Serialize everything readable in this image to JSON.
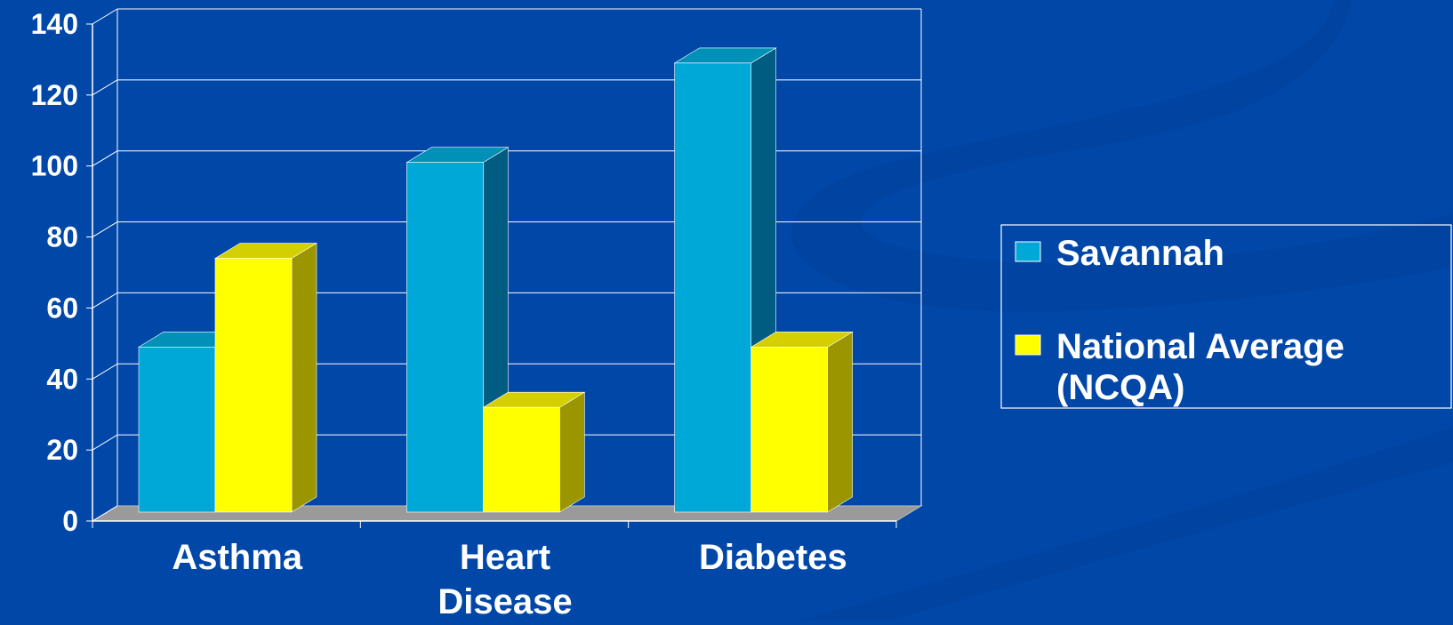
{
  "colors": {
    "background": "#0047A8",
    "gridline": "#ffffff",
    "floor": "#9a9a9a",
    "savannah_front": "#00A8D8",
    "savannah_top": "#0090B8",
    "savannah_side": "#005C80",
    "national_front": "#FFFF00",
    "national_top": "#D4CF00",
    "national_side": "#9B9600"
  },
  "chart_data": {
    "type": "bar",
    "style": "3d-clustered",
    "categories": [
      [
        "Asthma"
      ],
      [
        "Heart",
        "Disease"
      ],
      [
        "Diabetes"
      ]
    ],
    "series": [
      {
        "name": "Savannah",
        "values": [
          48,
          100,
          128
        ],
        "color": "#00A8D8"
      },
      {
        "name": "National Average (NCQA)",
        "values": [
          73,
          31,
          48
        ],
        "color": "#FFFF00"
      }
    ],
    "y_ticks": [
      "0",
      "20",
      "40",
      "60",
      "80",
      "100",
      "120",
      "140"
    ],
    "ylim": [
      0,
      140
    ],
    "grid": true,
    "legend": {
      "placement": "right",
      "entries": [
        [
          "Savannah"
        ],
        [
          "National Average",
          "(NCQA)"
        ]
      ]
    }
  }
}
